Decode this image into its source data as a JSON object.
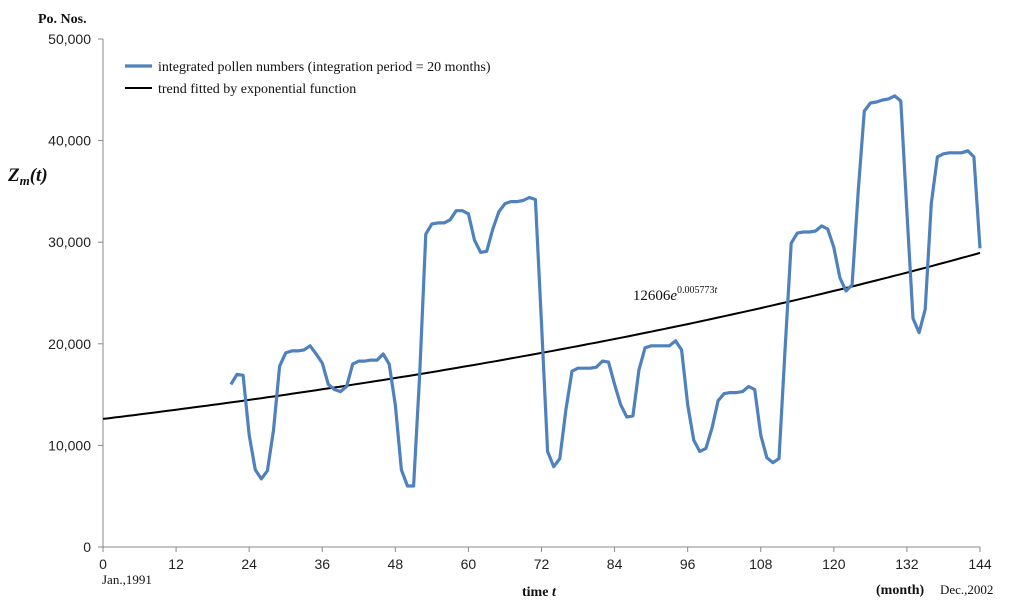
{
  "chart_data": {
    "type": "line",
    "ylabel_top": "Po. Nos.",
    "ylabel_side": "Z",
    "ylabel_side_sub": "m",
    "ylabel_side_arg": "(t)",
    "xlabel": "time ",
    "xlabel_var": "t",
    "x_unit": "(month)",
    "x_start_label": "Jan.,1991",
    "x_end_label": "Dec.,2002",
    "xlim": [
      0,
      144
    ],
    "ylim": [
      0,
      50000
    ],
    "x_ticks": [
      0,
      12,
      24,
      36,
      48,
      60,
      72,
      84,
      96,
      108,
      120,
      132,
      144
    ],
    "y_ticks": [
      0,
      10000,
      20000,
      30000,
      40000,
      50000
    ],
    "y_tick_labels": [
      "0",
      "10,000",
      "20,000",
      "30,000",
      "40,000",
      "50,000"
    ],
    "series": [
      {
        "name": "integrated pollen numbers (integration period = 20 months)",
        "color": "#4f81bd",
        "x": [
          21,
          22,
          23,
          24,
          25,
          26,
          27,
          28,
          29,
          30,
          31,
          32,
          33,
          34,
          35,
          36,
          37,
          38,
          39,
          40,
          41,
          42,
          43,
          44,
          45,
          46,
          47,
          48,
          49,
          50,
          51,
          52,
          53,
          54,
          55,
          56,
          57,
          58,
          59,
          60,
          61,
          62,
          63,
          64,
          65,
          66,
          67,
          68,
          69,
          70,
          71,
          72,
          73,
          74,
          75,
          76,
          77,
          78,
          79,
          80,
          81,
          82,
          83,
          84,
          85,
          86,
          87,
          88,
          89,
          90,
          91,
          92,
          93,
          94,
          95,
          96,
          97,
          98,
          99,
          100,
          101,
          102,
          103,
          104,
          105,
          106,
          107,
          108,
          109,
          110,
          111,
          112,
          113,
          114,
          115,
          116,
          117,
          118,
          119,
          120,
          121,
          122,
          123,
          124,
          125,
          126,
          127,
          128,
          129,
          130,
          131,
          132,
          133,
          134,
          135,
          136,
          137,
          138,
          139,
          140,
          141,
          142,
          143,
          144
        ],
        "values": [
          16000,
          17000,
          16900,
          11000,
          7600,
          6700,
          7500,
          11500,
          17800,
          19100,
          19300,
          19300,
          19400,
          19800,
          19000,
          18100,
          16000,
          15500,
          15300,
          15800,
          18000,
          18300,
          18300,
          18400,
          18400,
          19000,
          18000,
          14000,
          7600,
          6000,
          6000,
          17000,
          30800,
          31800,
          31900,
          31900,
          32200,
          33100,
          33100,
          32800,
          30200,
          29000,
          29100,
          31300,
          33000,
          33800,
          34000,
          34000,
          34100,
          34400,
          34200,
          22000,
          9400,
          7900,
          8700,
          13500,
          17300,
          17600,
          17600,
          17600,
          17700,
          18300,
          18200,
          16000,
          14000,
          12800,
          12900,
          17400,
          19600,
          19800,
          19800,
          19800,
          19800,
          20300,
          19400,
          14000,
          10500,
          9400,
          9700,
          11700,
          14400,
          15100,
          15200,
          15200,
          15300,
          15800,
          15500,
          11000,
          8800,
          8300,
          8700,
          19500,
          29900,
          30900,
          31000,
          31000,
          31100,
          31600,
          31300,
          29500,
          26500,
          25200,
          25800,
          35000,
          42900,
          43700,
          43800,
          44000,
          44100,
          44400,
          43900,
          33000,
          22500,
          21100,
          23400,
          33800,
          38400,
          38700,
          38800,
          38800,
          38800,
          39000,
          38400,
          29400
        ]
      },
      {
        "name": "trend fitted by exponential function",
        "color": "#000000",
        "function": "12606*exp(0.005773*t)",
        "coef": 12606,
        "rate": 0.005773
      }
    ],
    "annotation": {
      "base": "12606",
      "e": "e",
      "exponent": "0.005773",
      "exponent_var": "t",
      "at_x": 87,
      "at_y": 24300
    },
    "legend_position": "top-left",
    "grid": false
  }
}
